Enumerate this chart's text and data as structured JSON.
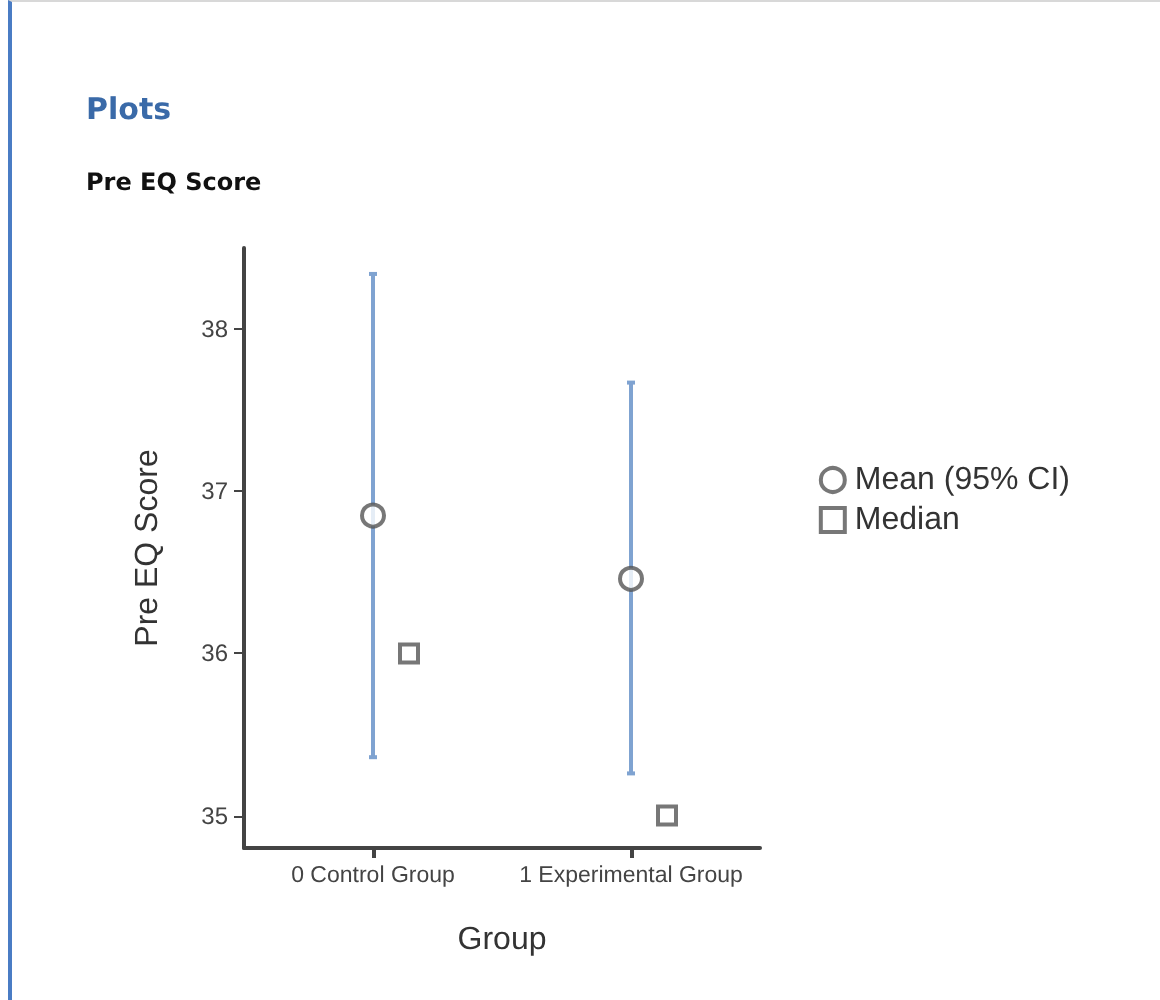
{
  "chart_data": {
    "type": "scatter",
    "title": "Plots",
    "subtitle": "Pre EQ Score",
    "xlabel": "Group",
    "ylabel": "Pre EQ Score",
    "categories": [
      "0 Control Group",
      "1 Experimental Group"
    ],
    "series": [
      {
        "name": "Mean (95% CI)",
        "color": "#555555",
        "marker": "circle",
        "values": [
          36.85,
          36.46
        ],
        "errors": [
          [
            35.36,
            38.34
          ],
          [
            35.26,
            37.67
          ]
        ]
      },
      {
        "name": "Median",
        "color": "#555555",
        "marker": "square",
        "values": [
          36.0,
          35.0
        ]
      }
    ],
    "ylim": [
      34.8,
      38.5
    ],
    "yticks": [
      35,
      36,
      37,
      38
    ],
    "grid": false,
    "legend": "right"
  }
}
